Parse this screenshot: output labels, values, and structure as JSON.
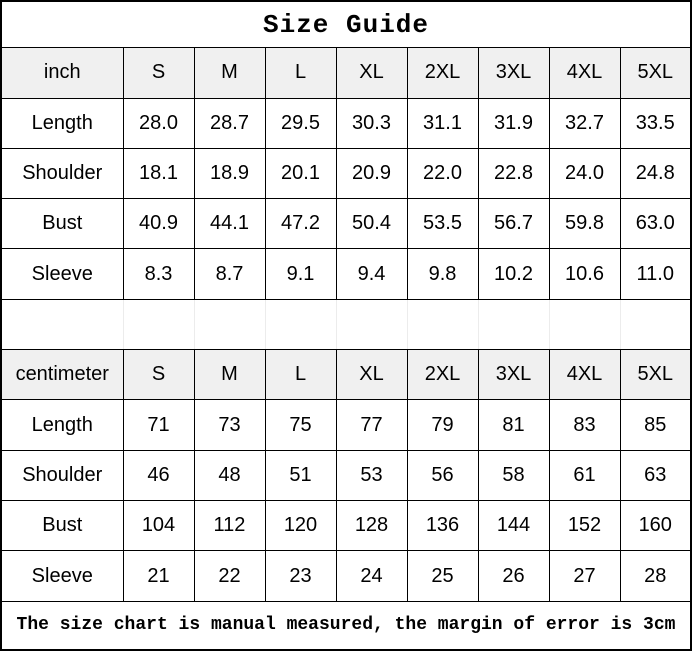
{
  "title": "Size Guide",
  "footer_note": "The size chart is manual measured, the margin of error is 3cm",
  "colors": {
    "header_bg": "#f0f0f0",
    "border": "#000000",
    "gap_gridline": "#ececec",
    "text": "#000000"
  },
  "sizes": [
    "S",
    "M",
    "L",
    "XL",
    "2XL",
    "3XL",
    "4XL",
    "5XL"
  ],
  "tables": [
    {
      "unit_label": "inch",
      "rows": [
        {
          "label": "Length",
          "values": [
            "28.0",
            "28.7",
            "29.5",
            "30.3",
            "31.1",
            "31.9",
            "32.7",
            "33.5"
          ]
        },
        {
          "label": "Shoulder",
          "values": [
            "18.1",
            "18.9",
            "20.1",
            "20.9",
            "22.0",
            "22.8",
            "24.0",
            "24.8"
          ]
        },
        {
          "label": "Bust",
          "values": [
            "40.9",
            "44.1",
            "47.2",
            "50.4",
            "53.5",
            "56.7",
            "59.8",
            "63.0"
          ]
        },
        {
          "label": "Sleeve",
          "values": [
            "8.3",
            "8.7",
            "9.1",
            "9.4",
            "9.8",
            "10.2",
            "10.6",
            "11.0"
          ]
        }
      ]
    },
    {
      "unit_label": "centimeter",
      "rows": [
        {
          "label": "Length",
          "values": [
            "71",
            "73",
            "75",
            "77",
            "79",
            "81",
            "83",
            "85"
          ]
        },
        {
          "label": "Shoulder",
          "values": [
            "46",
            "48",
            "51",
            "53",
            "56",
            "58",
            "61",
            "63"
          ]
        },
        {
          "label": "Bust",
          "values": [
            "104",
            "112",
            "120",
            "128",
            "136",
            "144",
            "152",
            "160"
          ]
        },
        {
          "label": "Sleeve",
          "values": [
            "21",
            "22",
            "23",
            "24",
            "25",
            "26",
            "27",
            "28"
          ]
        }
      ]
    }
  ],
  "chart_data": [
    {
      "type": "table",
      "title": "Size Guide",
      "unit": "inch",
      "columns": [
        "inch",
        "S",
        "M",
        "L",
        "XL",
        "2XL",
        "3XL",
        "4XL",
        "5XL"
      ],
      "rows": [
        [
          "Length",
          28.0,
          28.7,
          29.5,
          30.3,
          31.1,
          31.9,
          32.7,
          33.5
        ],
        [
          "Shoulder",
          18.1,
          18.9,
          20.1,
          20.9,
          22.0,
          22.8,
          24.0,
          24.8
        ],
        [
          "Bust",
          40.9,
          44.1,
          47.2,
          50.4,
          53.5,
          56.7,
          59.8,
          63.0
        ],
        [
          "Sleeve",
          8.3,
          8.7,
          9.1,
          9.4,
          9.8,
          10.2,
          10.6,
          11.0
        ]
      ]
    },
    {
      "type": "table",
      "title": "Size Guide",
      "unit": "centimeter",
      "columns": [
        "centimeter",
        "S",
        "M",
        "L",
        "XL",
        "2XL",
        "3XL",
        "4XL",
        "5XL"
      ],
      "rows": [
        [
          "Length",
          71,
          73,
          75,
          77,
          79,
          81,
          83,
          85
        ],
        [
          "Shoulder",
          46,
          48,
          51,
          53,
          56,
          58,
          61,
          63
        ],
        [
          "Bust",
          104,
          112,
          120,
          128,
          136,
          144,
          152,
          160
        ],
        [
          "Sleeve",
          21,
          22,
          23,
          24,
          25,
          26,
          27,
          28
        ]
      ],
      "annotation": "The size chart is manual measured, the margin of error is 3cm"
    }
  ]
}
